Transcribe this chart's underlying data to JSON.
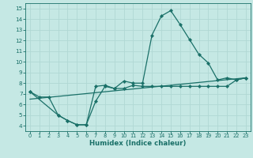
{
  "xlabel": "Humidex (Indice chaleur)",
  "xlim": [
    -0.5,
    23.5
  ],
  "ylim": [
    3.5,
    15.5
  ],
  "xticks": [
    0,
    1,
    2,
    3,
    4,
    5,
    6,
    7,
    8,
    9,
    10,
    11,
    12,
    13,
    14,
    15,
    16,
    17,
    18,
    19,
    20,
    21,
    22,
    23
  ],
  "yticks": [
    4,
    5,
    6,
    7,
    8,
    9,
    10,
    11,
    12,
    13,
    14,
    15
  ],
  "bg_color": "#c5e8e4",
  "grid_color": "#b0d8d4",
  "line_color": "#1a7068",
  "line1_x": [
    0,
    1,
    2,
    3,
    4,
    5,
    6,
    7,
    8,
    9,
    10,
    11,
    12,
    13,
    14,
    15,
    16,
    17,
    18,
    19,
    20,
    21,
    22,
    23
  ],
  "line1_y": [
    7.2,
    6.7,
    6.7,
    5.0,
    4.5,
    4.1,
    4.1,
    6.3,
    7.7,
    7.5,
    8.2,
    8.0,
    8.0,
    12.5,
    14.3,
    14.8,
    13.5,
    12.1,
    10.7,
    9.9,
    8.3,
    8.5,
    8.3,
    8.5
  ],
  "line2_x": [
    0,
    3,
    4,
    5,
    6,
    7,
    8,
    9,
    10,
    11,
    12,
    13,
    14,
    15,
    16,
    17,
    18,
    19,
    20,
    21,
    22,
    23
  ],
  "line2_y": [
    7.2,
    5.0,
    4.5,
    4.1,
    4.1,
    7.7,
    7.8,
    7.5,
    7.5,
    7.8,
    7.7,
    7.7,
    7.7,
    7.7,
    7.7,
    7.7,
    7.7,
    7.7,
    7.7,
    7.7,
    8.3,
    8.5
  ],
  "line3_x": [
    0,
    23
  ],
  "line3_y": [
    6.5,
    8.5
  ]
}
